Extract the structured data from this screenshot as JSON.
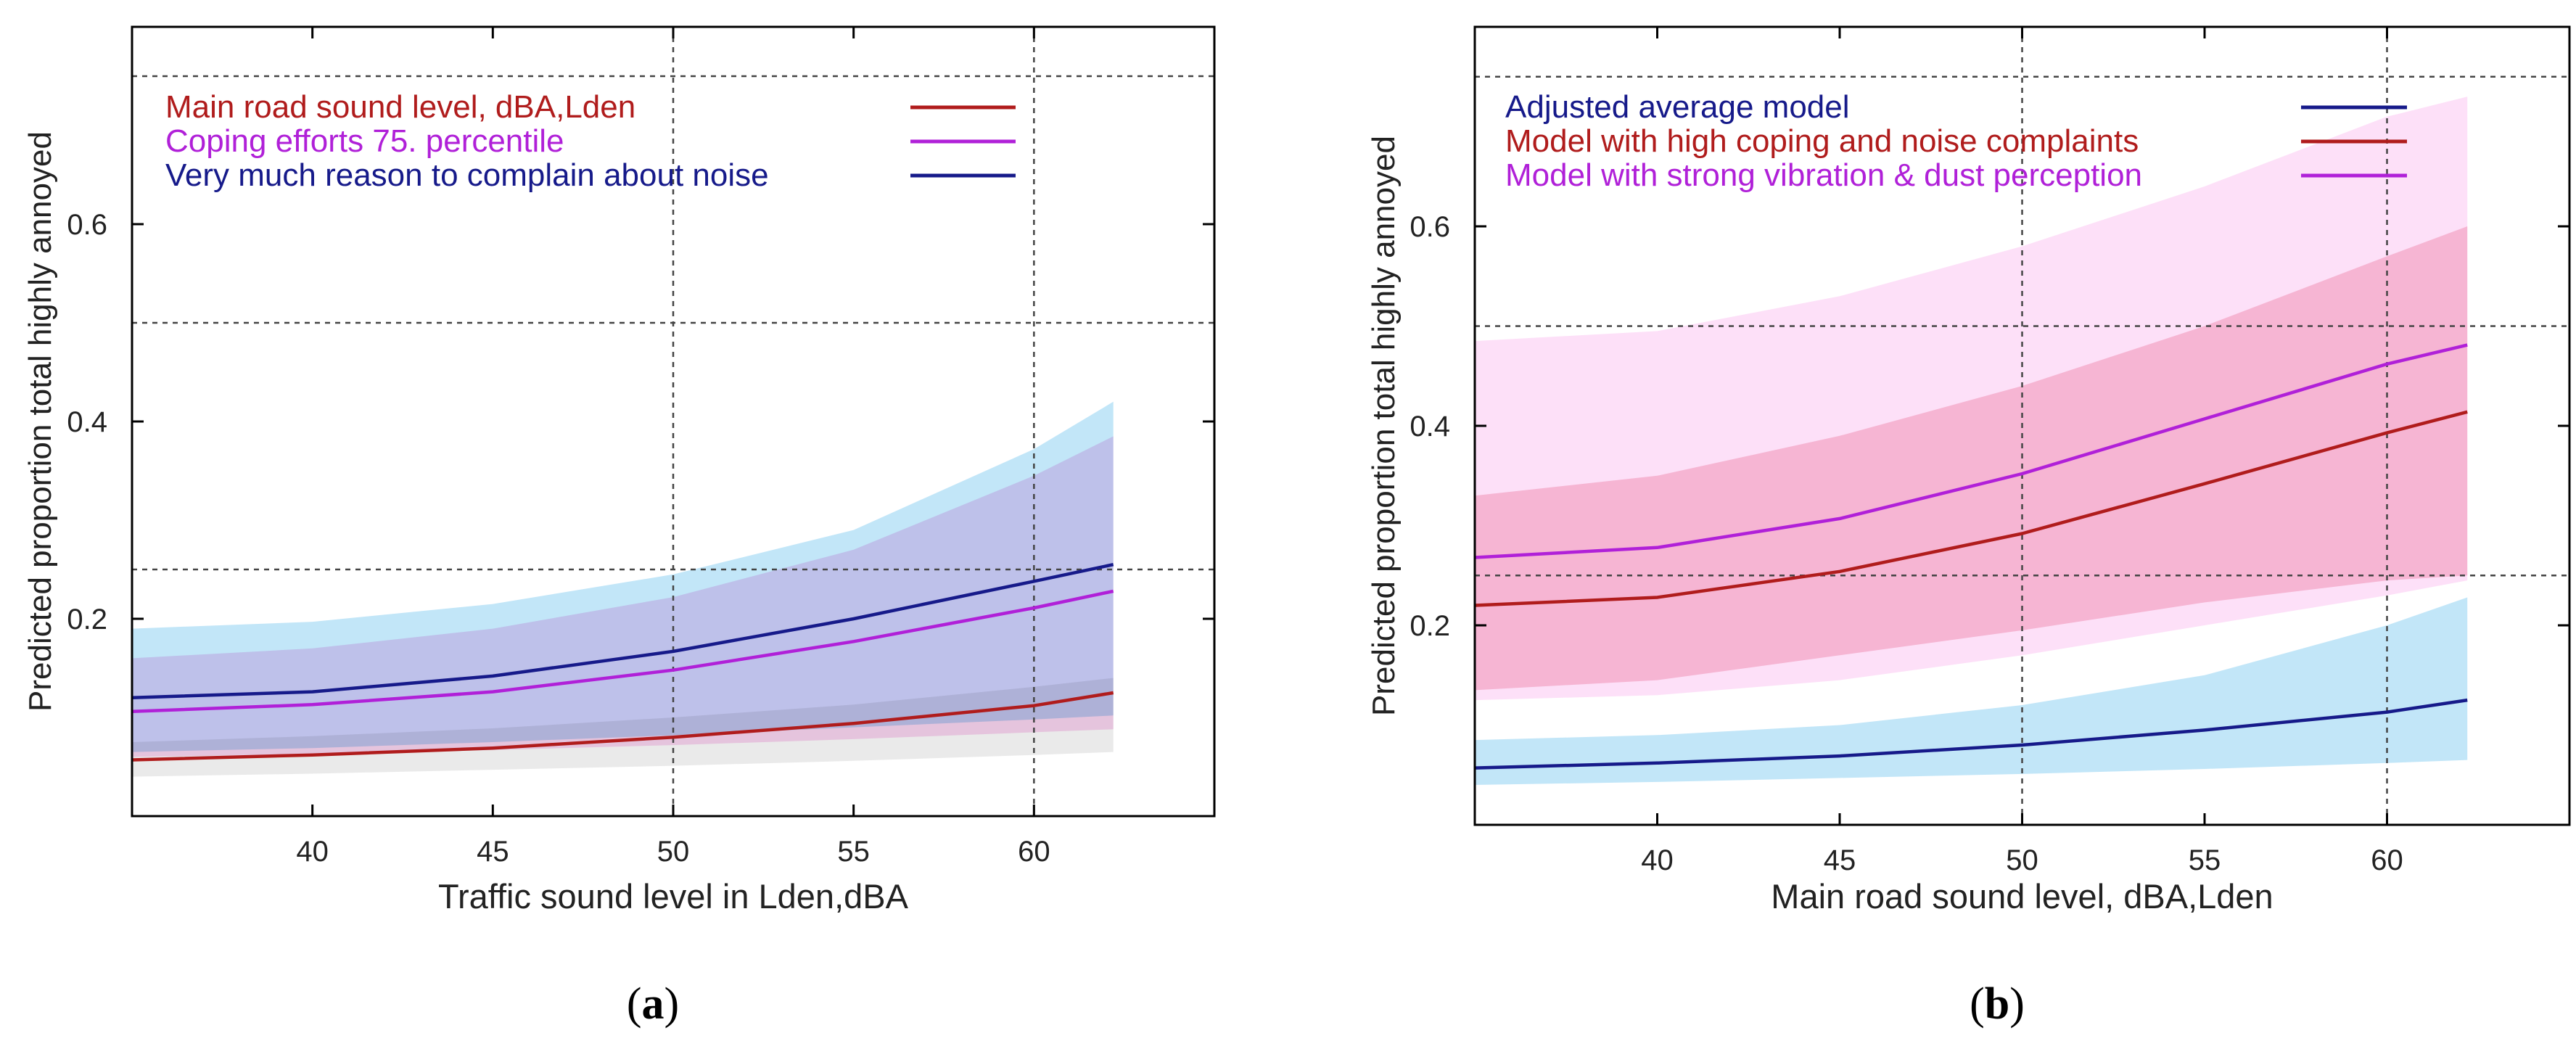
{
  "figure": {
    "panels": [
      {
        "id": "a",
        "caption_open": "(",
        "caption_letter": "a",
        "caption_close": ")"
      },
      {
        "id": "b",
        "caption_open": "(",
        "caption_letter": "b",
        "caption_close": ")"
      }
    ]
  },
  "chart_data": [
    {
      "type": "line",
      "panel": "a",
      "title": "",
      "xlabel": "Traffic sound level in Lden,dBA",
      "ylabel": "Predicted proportion total highly annoyed",
      "xlim": [
        35,
        65
      ],
      "ylim": [
        0.0,
        0.8
      ],
      "xticks": [
        40,
        45,
        50,
        55,
        60
      ],
      "yticks": [
        0.2,
        0.4,
        0.6
      ],
      "xtick_labels": [
        "40",
        "45",
        "50",
        "55",
        "60"
      ],
      "ytick_labels": [
        "0.2",
        "0.4",
        "0.6"
      ],
      "reference_hlines": [
        0.25,
        0.5,
        0.75
      ],
      "reference_vlines": [
        50,
        60
      ],
      "grid": false,
      "legend_position": "top-left",
      "series": [
        {
          "name": "Main road sound level, dBA,Lden",
          "color": "#b01c1c",
          "band_color": "#d8d8d8",
          "x": [
            35,
            40,
            45,
            50,
            55,
            60,
            62.2
          ],
          "values": [
            0.057,
            0.062,
            0.069,
            0.08,
            0.094,
            0.112,
            0.125
          ],
          "ci_low": [
            0.04,
            0.043,
            0.047,
            0.051,
            0.056,
            0.062,
            0.065
          ],
          "ci_high": [
            0.075,
            0.081,
            0.089,
            0.1,
            0.113,
            0.131,
            0.14
          ]
        },
        {
          "name": "Coping efforts 75. percentile",
          "color": "#b020d8",
          "band_color": "#f5b4e6",
          "x": [
            35,
            40,
            45,
            50,
            55,
            60,
            62.2
          ],
          "values": [
            0.106,
            0.113,
            0.126,
            0.148,
            0.177,
            0.211,
            0.228
          ],
          "ci_low": [
            0.06,
            0.063,
            0.067,
            0.072,
            0.078,
            0.085,
            0.088
          ],
          "ci_high": [
            0.16,
            0.17,
            0.19,
            0.222,
            0.27,
            0.345,
            0.385
          ]
        },
        {
          "name": "Very much reason to complain about noise",
          "color": "#161a8a",
          "band_color": "#8fd2f2",
          "x": [
            35,
            40,
            45,
            50,
            55,
            60,
            62.2
          ],
          "values": [
            0.12,
            0.126,
            0.142,
            0.167,
            0.2,
            0.238,
            0.255
          ],
          "ci_low": [
            0.065,
            0.069,
            0.075,
            0.082,
            0.09,
            0.098,
            0.102
          ],
          "ci_high": [
            0.19,
            0.197,
            0.215,
            0.245,
            0.29,
            0.372,
            0.42
          ]
        }
      ]
    },
    {
      "type": "line",
      "panel": "b",
      "title": "",
      "xlabel": "Main road sound level, dBA,Lden",
      "ylabel": "Predicted proportion total highly annoyed",
      "xlim": [
        35,
        65
      ],
      "ylim": [
        0.0,
        0.8
      ],
      "xticks": [
        40,
        45,
        50,
        55,
        60
      ],
      "yticks": [
        0.2,
        0.4,
        0.6
      ],
      "xtick_labels": [
        "40",
        "45",
        "50",
        "55",
        "60"
      ],
      "ytick_labels": [
        "0.2",
        "0.4",
        "0.6"
      ],
      "reference_hlines": [
        0.25,
        0.5,
        0.75
      ],
      "reference_vlines": [
        50,
        60
      ],
      "grid": false,
      "legend_position": "top-left",
      "series": [
        {
          "name": "Adjusted average model",
          "color": "#161a8a",
          "band_color": "#8fd2f2",
          "x": [
            35,
            40,
            45,
            50,
            55,
            60,
            62.2
          ],
          "values": [
            0.057,
            0.062,
            0.069,
            0.08,
            0.095,
            0.113,
            0.125
          ],
          "ci_low": [
            0.04,
            0.043,
            0.047,
            0.051,
            0.056,
            0.062,
            0.065
          ],
          "ci_high": [
            0.085,
            0.09,
            0.1,
            0.12,
            0.15,
            0.2,
            0.228
          ]
        },
        {
          "name": "Model with high coping and noise complaints",
          "color": "#b01c1c",
          "band_color": "#f2a6ba",
          "x": [
            35,
            40,
            45,
            50,
            55,
            60,
            62.2
          ],
          "values": [
            0.22,
            0.228,
            0.254,
            0.292,
            0.342,
            0.393,
            0.414
          ],
          "ci_low": [
            0.135,
            0.145,
            0.17,
            0.195,
            0.223,
            0.245,
            0.25
          ],
          "ci_high": [
            0.33,
            0.35,
            0.39,
            0.44,
            0.5,
            0.57,
            0.6
          ]
        },
        {
          "name": "Model with strong vibration & dust perception",
          "color": "#b020d8",
          "band_color": "#fbc6f2",
          "x": [
            35,
            40,
            45,
            50,
            55,
            60,
            62.2
          ],
          "values": [
            0.268,
            0.278,
            0.307,
            0.352,
            0.407,
            0.462,
            0.481
          ],
          "ci_low": [
            0.125,
            0.13,
            0.145,
            0.17,
            0.2,
            0.23,
            0.245
          ],
          "ci_high": [
            0.485,
            0.495,
            0.53,
            0.58,
            0.64,
            0.71,
            0.73
          ]
        }
      ]
    }
  ]
}
